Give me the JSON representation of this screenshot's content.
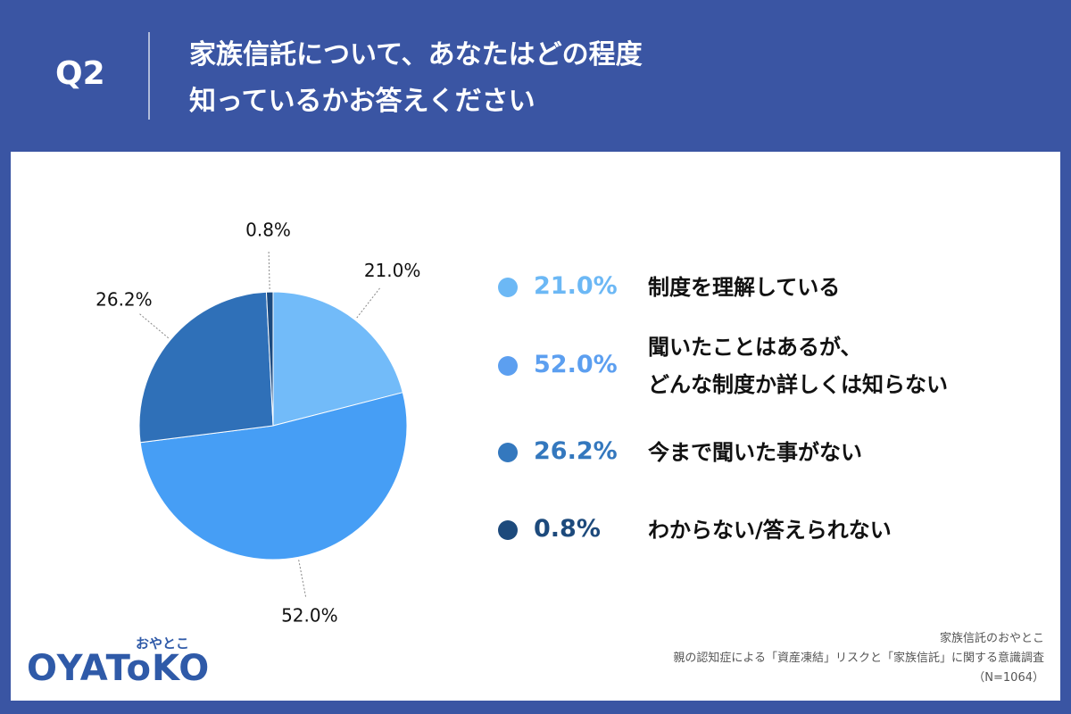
{
  "chart_data": {
    "type": "pie",
    "question_label": "Q2",
    "title": [
      "家族信託について、あなたはどの程度",
      "知っているかお答えください"
    ],
    "categories": [
      "制度を理解している",
      "聞いたことはあるが、\nどんな制度か詳しくは知らない",
      "今まで聞いた事がない",
      "わからない/答えられない"
    ],
    "values": [
      21.0,
      52.0,
      26.2,
      0.8
    ],
    "value_labels": [
      "21.0%",
      "52.0%",
      "26.2%",
      "0.8%"
    ],
    "colors": [
      "#72bbf9",
      "#469ef5",
      "#2f70b8",
      "#1b4a80"
    ],
    "legend_colors": [
      "#6cb8f5",
      "#5c9ff0",
      "#3478be",
      "#1d4a7c"
    ],
    "logo": {
      "kana": "おやとこ",
      "text": "OYAToKO"
    },
    "source": [
      "家族信託のおやとこ",
      "親の認知症による「資産凍結」リスクと「家族信託」に関する意識調査",
      "（N=1064）"
    ]
  }
}
